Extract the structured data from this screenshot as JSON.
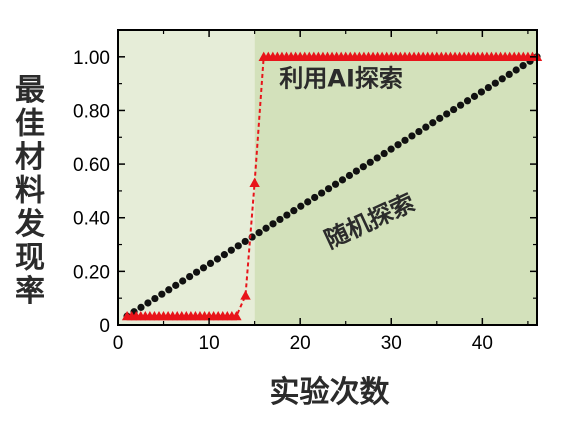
{
  "chart_data": {
    "type": "line",
    "title": "",
    "xlabel": "实验次数",
    "ylabel": "最佳材料发现率",
    "xlim": [
      0,
      46
    ],
    "ylim": [
      0,
      1.1
    ],
    "xticks": [
      0,
      10,
      20,
      30,
      40
    ],
    "yticks": [
      0,
      0.2,
      0.4,
      0.6,
      0.8,
      1.0
    ],
    "xtick_labels": [
      "0",
      "10",
      "20",
      "30",
      "40"
    ],
    "ytick_labels": [
      "0",
      "0.20",
      "0.40",
      "0.60",
      "0.80",
      "1.00"
    ],
    "shaded_regions": [
      {
        "x_from": 0,
        "x_to": 15,
        "color": "#e6edd8"
      },
      {
        "x_from": 15,
        "x_to": 46,
        "color": "#d3e1bb"
      }
    ],
    "series": [
      {
        "label": "随机探索",
        "style": "dotted-circles",
        "color": "#111111",
        "x": [
          1,
          46
        ],
        "y": [
          0.033,
          1.0
        ],
        "point_count": 60
      },
      {
        "label": "利用AI探索",
        "style": "dashed-triangles",
        "color": "#e8141a",
        "x": [
          1,
          2,
          3,
          4,
          5,
          6,
          7,
          8,
          9,
          10,
          11,
          12,
          13,
          14,
          15,
          16,
          17,
          18,
          19,
          20,
          21,
          22,
          23,
          24,
          25,
          26,
          27,
          28,
          29,
          30,
          31,
          32,
          33,
          34,
          35,
          36,
          37,
          38,
          39,
          40,
          41,
          42,
          43,
          44,
          45,
          46
        ],
        "y": [
          0.033,
          0.033,
          0.033,
          0.033,
          0.033,
          0.033,
          0.033,
          0.033,
          0.033,
          0.033,
          0.033,
          0.033,
          0.033,
          0.11,
          0.53,
          1.0,
          1.0,
          1.0,
          1.0,
          1.0,
          1.0,
          1.0,
          1.0,
          1.0,
          1.0,
          1.0,
          1.0,
          1.0,
          1.0,
          1.0,
          1.0,
          1.0,
          1.0,
          1.0,
          1.0,
          1.0,
          1.0,
          1.0,
          1.0,
          1.0,
          1.0,
          1.0,
          1.0,
          1.0,
          1.0,
          1.0
        ],
        "extra_markers_x": [
          1.5,
          2.5,
          3.5,
          4.5,
          5.5,
          6.5,
          7.5,
          8.5,
          9.5,
          10.5,
          11.5,
          12.5,
          16.5,
          17.5,
          18.5,
          19.5,
          20.5,
          21.5,
          22.5,
          23.5,
          24.5,
          25.5,
          26.5,
          27.5,
          28.5,
          29.5,
          30.5,
          31.5,
          32.5,
          33.5,
          34.5,
          35.5,
          36.5,
          37.5,
          38.5,
          39.5,
          40.5,
          41.5,
          42.5,
          43.5,
          44.5,
          45.5
        ]
      }
    ],
    "annotations": [
      {
        "text": "利用AI探索",
        "x": 24.5,
        "y": 0.89,
        "rotation": 0
      },
      {
        "text": "随机探索",
        "x": 28.0,
        "y": 0.36,
        "rotation": -25
      }
    ]
  }
}
